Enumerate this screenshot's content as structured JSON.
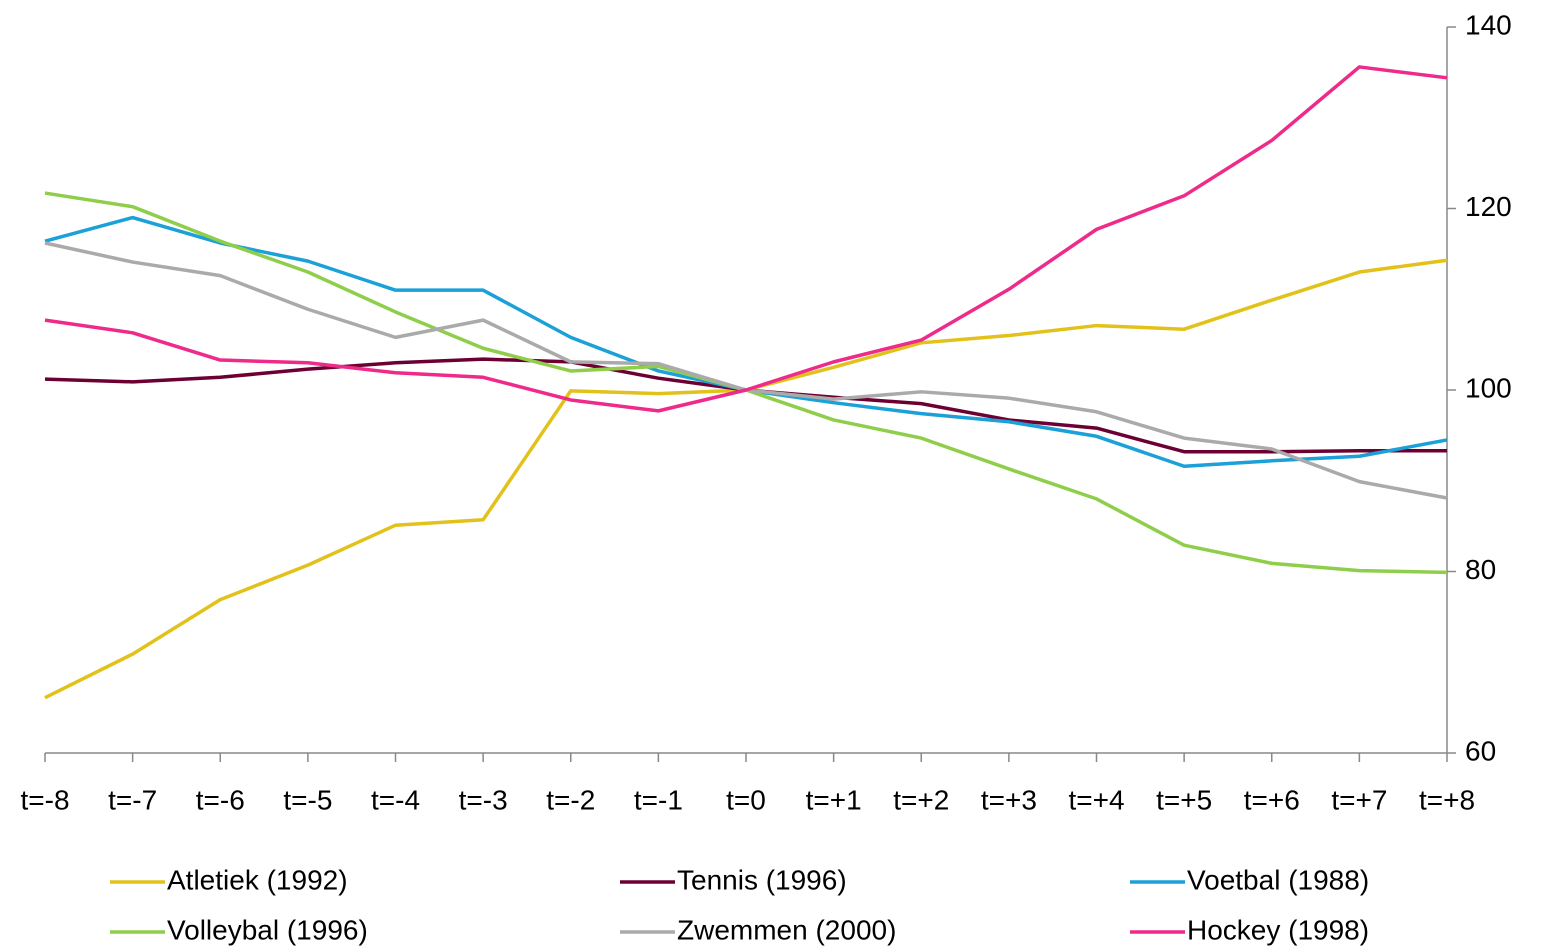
{
  "chart_data": {
    "type": "line",
    "categories": [
      "t=-8",
      "t=-7",
      "t=-6",
      "t=-5",
      "t=-4",
      "t=-3",
      "t=-2",
      "t=-1",
      "t=0",
      "t=+1",
      "t=+2",
      "t=+3",
      "t=+4",
      "t=+5",
      "t=+6",
      "t=+7",
      "t=+8"
    ],
    "series": [
      {
        "name": "Atletiek (1992)",
        "color": "#e2c21a",
        "values": [
          66.1,
          70.9,
          76.9,
          80.7,
          85.1,
          85.7,
          99.9,
          99.6,
          100,
          102.5,
          105.2,
          106.0,
          107.1,
          106.7,
          109.9,
          113.0,
          114.3
        ]
      },
      {
        "name": "Tennis (1996)",
        "color": "#6d0033",
        "values": [
          101.2,
          100.9,
          101.4,
          102.3,
          103.0,
          103.4,
          103.1,
          101.3,
          100,
          99.2,
          98.5,
          96.7,
          95.8,
          93.2,
          93.2,
          93.3,
          93.3
        ]
      },
      {
        "name": "Voetbal (1988)",
        "color": "#1ba0d7",
        "values": [
          116.4,
          119.0,
          116.2,
          114.2,
          111.0,
          111.0,
          105.8,
          102.1,
          100,
          98.6,
          97.4,
          96.5,
          94.9,
          91.6,
          92.2,
          92.7,
          94.5
        ]
      },
      {
        "name": "Volleybal (1996)",
        "color": "#8fce4a",
        "values": [
          121.7,
          120.2,
          116.4,
          113.0,
          108.6,
          104.6,
          102.1,
          102.6,
          100,
          96.7,
          94.7,
          91.3,
          88.0,
          82.9,
          80.9,
          80.1,
          79.9
        ]
      },
      {
        "name": "Zwemmen (2000)",
        "color": "#aaaaaa",
        "values": [
          116.2,
          114.1,
          112.6,
          108.9,
          105.8,
          107.7,
          103.1,
          102.9,
          100,
          99.0,
          99.8,
          99.1,
          97.6,
          94.7,
          93.5,
          89.9,
          88.1
        ]
      },
      {
        "name": "Hockey (1998)",
        "color": "#ee2a8a",
        "values": [
          107.7,
          106.3,
          103.3,
          103.0,
          101.9,
          101.4,
          98.9,
          97.7,
          100,
          103.1,
          105.5,
          111.1,
          117.7,
          121.4,
          127.5,
          135.6,
          134.4
        ]
      }
    ],
    "ylim": [
      60,
      140
    ],
    "yticks": [
      60,
      80,
      100,
      120,
      140
    ],
    "y_axis_side": "right",
    "grid": false,
    "legend": "bottom"
  }
}
